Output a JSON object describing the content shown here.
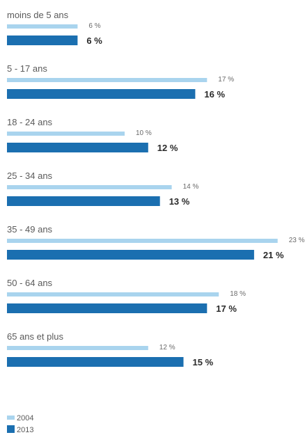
{
  "chart_data": {
    "type": "bar",
    "orientation": "horizontal",
    "categories": [
      "moins de 5 ans",
      "5 - 17 ans",
      "18 - 24 ans",
      "25 - 34 ans",
      "35 - 49 ans",
      "50 - 64 ans",
      "65 ans et plus"
    ],
    "series": [
      {
        "name": "2004",
        "values": [
          6,
          17,
          10,
          14,
          23,
          18,
          12
        ],
        "labels": [
          "6 %",
          "17 %",
          "10 %",
          "14 %",
          "23 %",
          "18 %",
          "12 %"
        ],
        "color": "#a9d4ee"
      },
      {
        "name": "2013",
        "values": [
          6,
          16,
          12,
          13,
          21,
          17,
          15
        ],
        "labels": [
          "6 %",
          "16 %",
          "12 %",
          "13 %",
          "21 %",
          "17 %",
          "15 %"
        ],
        "color": "#1b6fb0"
      }
    ],
    "xlim": [
      0,
      23
    ],
    "grid": false,
    "legend_position": "bottom-left",
    "title": "",
    "xlabel": "",
    "ylabel": ""
  }
}
